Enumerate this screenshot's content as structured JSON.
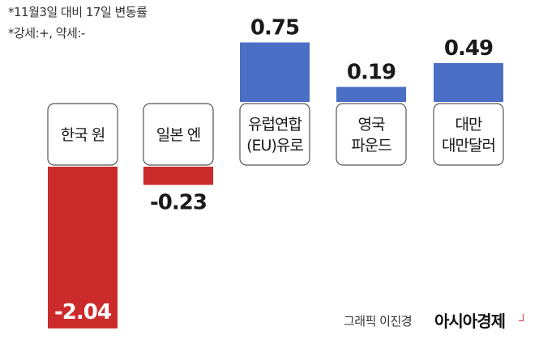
{
  "notes": {
    "line1": "*11월3일 대비 17일 변동률",
    "line2": "*강세:+, 약세:-"
  },
  "credit": {
    "graphic": "그래픽 이진경",
    "brand": "아시아경제"
  },
  "colors": {
    "positive": "#4a6fc4",
    "negative": "#cc2b2b",
    "label_box_border": "#555555"
  },
  "chart_data": {
    "type": "bar",
    "categories": [
      [
        "한국 원"
      ],
      [
        "일본 엔"
      ],
      [
        "유럽연합",
        "(EU)유로"
      ],
      [
        "영국",
        "파운드"
      ],
      [
        "대만",
        "대만달러"
      ]
    ],
    "values": [
      -2.04,
      -0.23,
      0.75,
      0.19,
      0.49
    ],
    "value_labels": [
      "-2.04",
      "-0.23",
      "0.75",
      "0.19",
      "0.49"
    ],
    "ylim": [
      -2.2,
      0.8
    ],
    "grid": false,
    "legend": "none"
  }
}
